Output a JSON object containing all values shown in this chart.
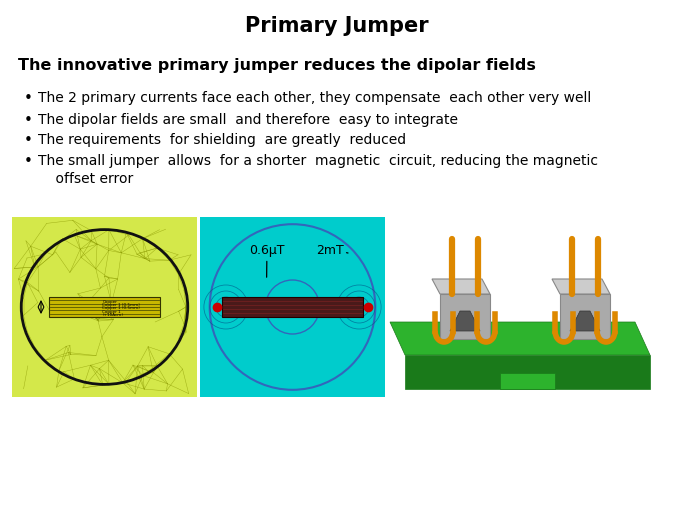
{
  "title": "Primary Jumper",
  "subtitle": "The innovative primary jumper reduces the dipolar fields",
  "bullet_points": [
    "The 2 primary currents face each other, they compensate  each other very well",
    "The dipolar fields are small  and therefore  easy to integrate",
    "The requirements  for shielding  are greatly  reduced",
    "The small jumper  allows  for a shorter  magnetic  circuit, reducing the magnetic\n    offset error"
  ],
  "title_fontsize": 15,
  "subtitle_fontsize": 11.5,
  "bullet_fontsize": 10,
  "title_font_weight": "bold",
  "subtitle_font_weight": "bold",
  "background_color": "#ffffff",
  "text_color": "#000000",
  "left_image_bg": "#d4e84a",
  "right_image_bg": "#00cccc",
  "annotation_0_6": "0.6μT",
  "annotation_2mT": "2mT",
  "mesh_color": "#8a9900",
  "ellipse_color": "#111111",
  "bar_color_left": "#888830",
  "bar_color_right": "#5a1a1a",
  "red_dot_color": "#cc0000",
  "circle_color": "#3366bb",
  "pcb_green": "#2db32d",
  "pcb_green_dark": "#1a7a1a",
  "pcb_green_light": "#44cc44",
  "connector_gray": "#aaaaaa",
  "connector_light": "#cccccc",
  "connector_dark": "#888888",
  "wire_orange": "#dd8800"
}
